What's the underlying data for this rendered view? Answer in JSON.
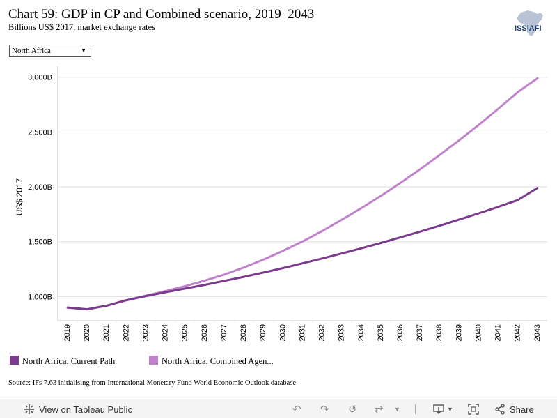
{
  "header": {
    "title": "Chart 59: GDP in CP and Combined scenario, 2019–2043",
    "subtitle": "Billions US$ 2017, market exchange rates",
    "logo_text": "ISS|AFI"
  },
  "filter": {
    "selected": "North Africa"
  },
  "chart_data": {
    "type": "line",
    "title": "Chart 59: GDP in CP and Combined scenario, 2019–2043",
    "subtitle": "Billions US$ 2017, market exchange rates",
    "xlabel": "",
    "ylabel": "US$ 2017",
    "x": [
      2019,
      2020,
      2021,
      2022,
      2023,
      2024,
      2025,
      2026,
      2027,
      2028,
      2029,
      2030,
      2031,
      2032,
      2033,
      2034,
      2035,
      2036,
      2037,
      2038,
      2039,
      2040,
      2041,
      2042,
      2043
    ],
    "x_tick_labels": [
      "2019",
      "2020",
      "2021",
      "2022",
      "2023",
      "2024",
      "2025",
      "2026",
      "2027",
      "2028",
      "2029",
      "2030",
      "2031",
      "2032",
      "2033",
      "2034",
      "2035",
      "2036",
      "2037",
      "2038",
      "2039",
      "2040",
      "2041",
      "2042",
      "2043"
    ],
    "ylim": [
      780,
      3100
    ],
    "y_ticks": [
      1000,
      1500,
      2000,
      2500,
      3000
    ],
    "y_tick_labels": [
      "1,000B",
      "1,500B",
      "2,000B",
      "2,500B",
      "3,000B"
    ],
    "grid": true,
    "legend_position": "bottom",
    "series": [
      {
        "name": "North Africa. Current Path",
        "legend_label": "North Africa. Current Path",
        "color": "#7a3b8c",
        "values": [
          900,
          884,
          917,
          967,
          1005,
          1040,
          1073,
          1107,
          1143,
          1180,
          1219,
          1260,
          1303,
          1347,
          1393,
          1440,
          1489,
          1540,
          1592,
          1646,
          1702,
          1759,
          1818,
          1880,
          1990
        ]
      },
      {
        "name": "North Africa. Combined Agenda",
        "legend_label": "North Africa. Combined Agen...",
        "color": "#c081cc",
        "values": [
          900,
          884,
          917,
          967,
          1008,
          1050,
          1095,
          1145,
          1200,
          1265,
          1337,
          1416,
          1502,
          1597,
          1700,
          1806,
          1918,
          2036,
          2160,
          2290,
          2425,
          2565,
          2712,
          2865,
          2990
        ]
      }
    ]
  },
  "footer": {
    "source": "Source: IFs 7.63 initialising from International Monetary Fund World Economic Outlook database"
  },
  "toolbar": {
    "view_label": "View on Tableau Public",
    "share_label": "Share"
  }
}
